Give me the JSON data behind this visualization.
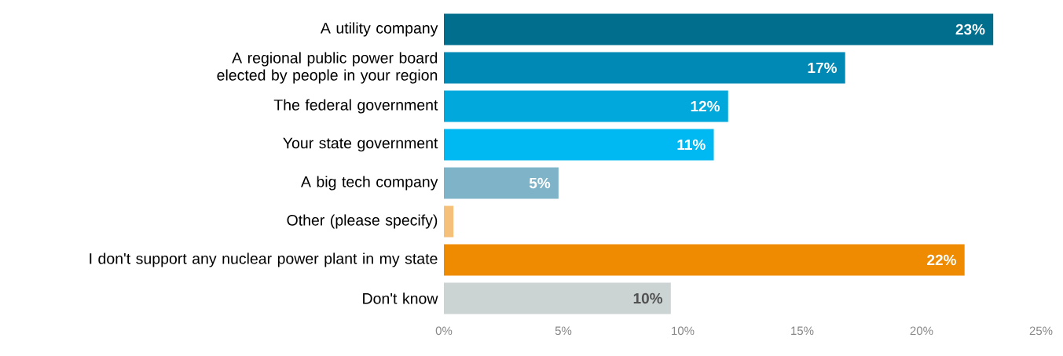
{
  "chart_data": {
    "type": "bar",
    "orientation": "horizontal",
    "categories": [
      "A utility company",
      "A regional public power board elected by people in your region",
      "The federal government",
      "Your state government",
      "A big tech company",
      "Other (please specify)",
      "I don't support any nuclear power plant in my state",
      "Don't know"
    ],
    "values": [
      23.0,
      16.8,
      11.9,
      11.3,
      4.8,
      0.4,
      21.8,
      9.5
    ],
    "value_labels": [
      "23%",
      "17%",
      "12%",
      "11%",
      "5%",
      null,
      "22%",
      "10%"
    ],
    "colors": [
      "#006e8c",
      "#0089b5",
      "#00a8dc",
      "#00b9f2",
      "#7fb3c8",
      "#f5c07a",
      "#ef8b00",
      "#cbd3d3"
    ],
    "xlim": [
      0,
      25
    ],
    "xticks": [
      {
        "value": 0,
        "label": "0%"
      },
      {
        "value": 5,
        "label": "5%"
      },
      {
        "value": 10,
        "label": "10%"
      },
      {
        "value": 15,
        "label": "15%"
      },
      {
        "value": 20,
        "label": "20%"
      },
      {
        "value": 25,
        "label": "25%"
      }
    ],
    "grid": false
  }
}
